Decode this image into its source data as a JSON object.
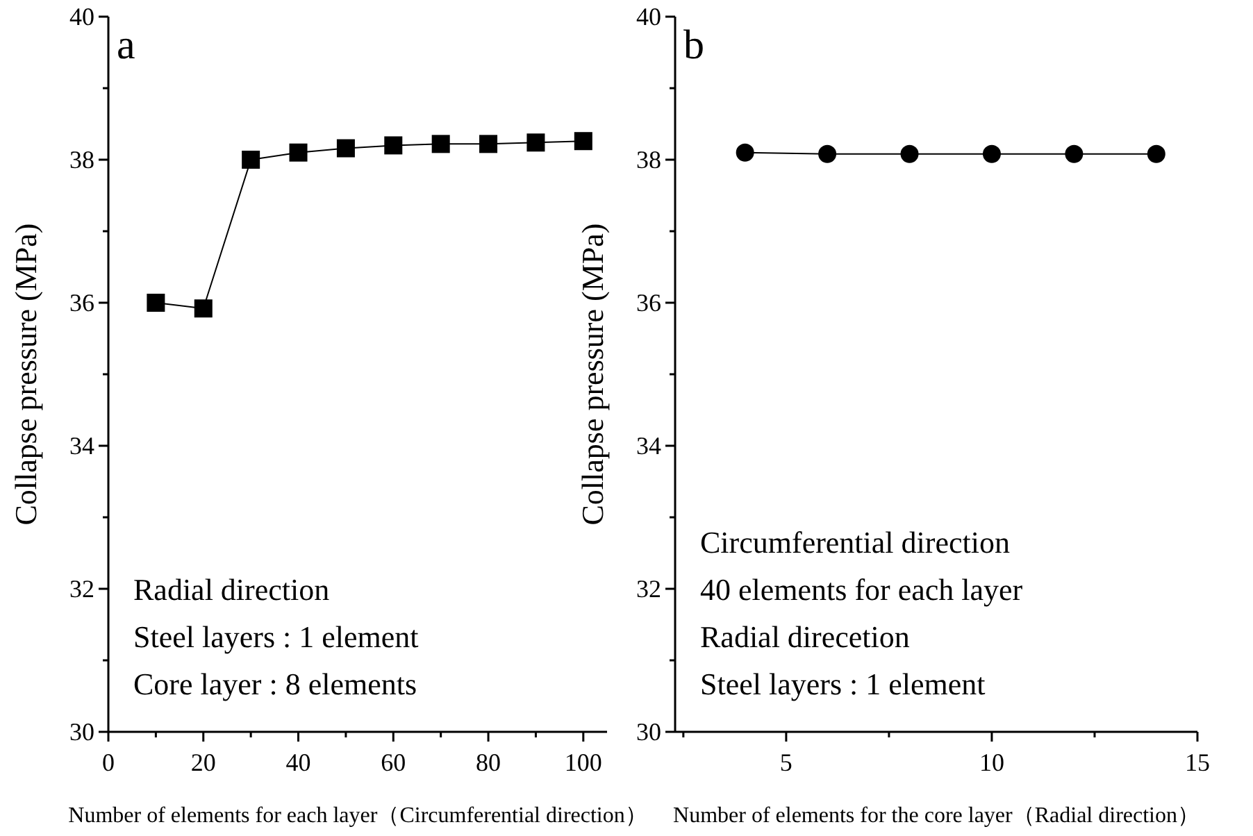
{
  "chart_data": [
    {
      "type": "line",
      "title": "a",
      "xlabel": "Number of elements for each layer（Circumferential direction）",
      "ylabel": "Collapse pressure (MPa)",
      "x": [
        10,
        20,
        30,
        40,
        50,
        60,
        70,
        80,
        90,
        100
      ],
      "series": [
        {
          "color": "#000000",
          "values": [
            36.0,
            35.92,
            38.0,
            38.1,
            38.16,
            38.2,
            38.22,
            38.22,
            38.24,
            38.26
          ]
        }
      ],
      "marker": "square",
      "line_style": "solid",
      "xlim": [
        0,
        105
      ],
      "ylim": [
        30,
        40
      ],
      "xticks": [
        0,
        {
          "value": 10,
          "label": null
        },
        20,
        {
          "value": 30,
          "label": null
        },
        40,
        {
          "value": 50,
          "label": null
        },
        60,
        {
          "value": 70,
          "label": null
        },
        80,
        {
          "value": 90,
          "label": null
        },
        100
      ],
      "yticks": [
        30,
        {
          "value": 31,
          "label": null
        },
        32,
        {
          "value": 33,
          "label": null
        },
        34,
        {
          "value": 35,
          "label": null
        },
        36,
        {
          "value": 37,
          "label": null
        },
        38,
        {
          "value": 39,
          "label": null
        },
        40
      ],
      "annotations": [
        "Radial direction",
        "Steel layers : 1 element",
        "Core layer : 8 elements"
      ]
    },
    {
      "type": "line",
      "title": "b",
      "xlabel": "Number of elements for the core layer（Radial direction）",
      "ylabel": "Collapse pressure (MPa)",
      "x": [
        4,
        6,
        8,
        10,
        12,
        14
      ],
      "series": [
        {
          "color": "#000000",
          "values": [
            38.1,
            38.08,
            38.08,
            38.08,
            38.08,
            38.08
          ]
        }
      ],
      "marker": "circle",
      "line_style": "solid",
      "xlim": [
        2.3,
        15
      ],
      "ylim": [
        30,
        40
      ],
      "xticks": [
        {
          "value": 2.5,
          "label": null
        },
        5,
        {
          "value": 7.5,
          "label": null
        },
        10,
        {
          "value": 12.5,
          "label": null
        },
        15
      ],
      "yticks": [
        30,
        {
          "value": 31,
          "label": null
        },
        32,
        {
          "value": 33,
          "label": null
        },
        34,
        {
          "value": 35,
          "label": null
        },
        36,
        {
          "value": 37,
          "label": null
        },
        38,
        {
          "value": 39,
          "label": null
        },
        40
      ],
      "annotations": [
        "Circumferential direction",
        "40 elements for each layer",
        "Radial direcetion",
        "Steel layers : 1 element"
      ]
    }
  ]
}
